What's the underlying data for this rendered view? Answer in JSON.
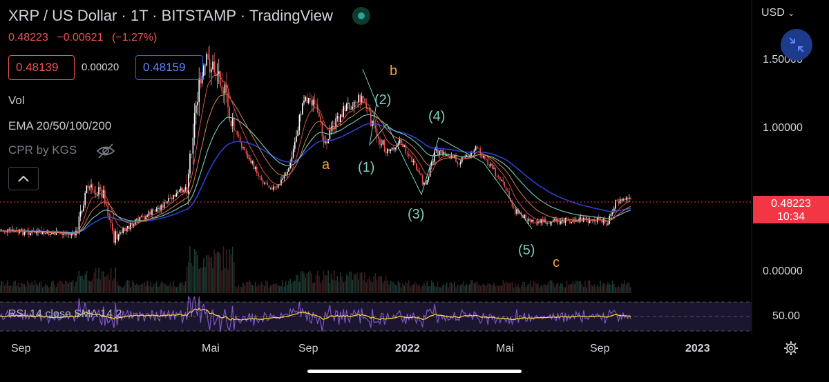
{
  "header": {
    "title": "XRP / US Dollar · 1T · BITSTAMP · TradingView",
    "last_price": "0.48223",
    "change": "−0.00621",
    "change_pct": "(−1.27%)",
    "bid": "0.48139",
    "spread": "0.00020",
    "ask": "0.48159"
  },
  "indicators": {
    "vol": "Vol",
    "ema": "EMA 20/50/100/200",
    "cpr": "CPR by KGS",
    "rsi": "RSI 14 close SMA 14 2"
  },
  "price_axis": {
    "currency": "USD",
    "labels": [
      "1.50000",
      "1.00000",
      "0.00000"
    ],
    "current": "0.48223",
    "countdown": "10:34"
  },
  "rsi_axis": {
    "label": "50.00"
  },
  "time_axis": [
    {
      "label": "Sep",
      "bold": false
    },
    {
      "label": "2021",
      "bold": true
    },
    {
      "label": "Mai",
      "bold": false
    },
    {
      "label": "Sep",
      "bold": false
    },
    {
      "label": "2022",
      "bold": true
    },
    {
      "label": "Mai",
      "bold": false
    },
    {
      "label": "Sep",
      "bold": false
    },
    {
      "label": "2023",
      "bold": true
    }
  ],
  "wave_labels": [
    {
      "text": "b",
      "color": "orange"
    },
    {
      "text": "a",
      "color": "orange"
    },
    {
      "text": "c",
      "color": "orange"
    },
    {
      "text": "(1)",
      "color": "teal"
    },
    {
      "text": "(2)",
      "color": "teal"
    },
    {
      "text": "(3)",
      "color": "teal"
    },
    {
      "text": "(4)",
      "color": "teal"
    },
    {
      "text": "(5)",
      "color": "teal"
    }
  ],
  "colors": {
    "up": "#ffffff",
    "down": "#ef5350",
    "ema20": "#ef5350",
    "ema50": "#d4844a",
    "ema100": "#6fc3b2",
    "ema200": "#2f3fd1",
    "rsi": "#7e57c2",
    "rsi_sma": "#f5d03a",
    "price_line": "#f23645"
  },
  "chart_data": {
    "type": "candlestick",
    "symbol": "XRP / US Dollar",
    "timeframe": "1T",
    "x": [
      "2020-09",
      "2020-10",
      "2020-11",
      "2020-12",
      "2021-01",
      "2021-02",
      "2021-03",
      "2021-04",
      "2021-05",
      "2021-06",
      "2021-07",
      "2021-08",
      "2021-09",
      "2021-10",
      "2021-11",
      "2021-12",
      "2022-01",
      "2022-02",
      "2022-03",
      "2022-04",
      "2022-05",
      "2022-06",
      "2022-07",
      "2022-08",
      "2022-09",
      "2022-10"
    ],
    "close": [
      0.24,
      0.24,
      0.24,
      0.5,
      0.3,
      0.38,
      0.48,
      1.25,
      1.45,
      0.85,
      0.7,
      1.0,
      1.1,
      1.05,
      1.1,
      0.85,
      0.75,
      0.8,
      0.82,
      0.8,
      0.45,
      0.33,
      0.35,
      0.35,
      0.48,
      0.48
    ],
    "ylim": [
      0.0,
      1.7
    ]
  }
}
